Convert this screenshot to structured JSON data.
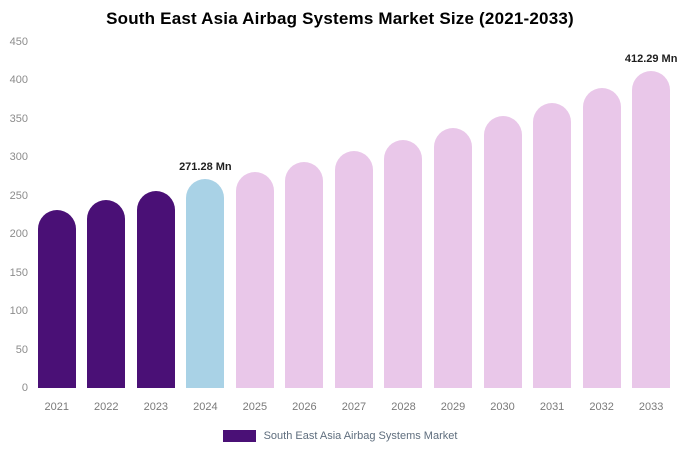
{
  "title": "South East Asia Airbag Systems Market Size (2021-2033)",
  "legend": {
    "label": "South East Asia Airbag Systems Market",
    "swatch_color": "#4a1076"
  },
  "colors": {
    "historical_bar": "#4a1076",
    "highlight_bar": "#a9d2e6",
    "forecast_bar": "#e9c7e9",
    "axis_text": "#8c8c8c",
    "annotation_text": "#1f1f1f"
  },
  "chart_data": {
    "type": "bar",
    "title": "South East Asia Airbag Systems Market Size (2021-2033)",
    "xlabel": "",
    "ylabel": "",
    "unit": "Mn",
    "categories": [
      "2021",
      "2022",
      "2023",
      "2024",
      "2025",
      "2026",
      "2027",
      "2028",
      "2029",
      "2030",
      "2031",
      "2032",
      "2033"
    ],
    "values": [
      231,
      244,
      256,
      271.28,
      281,
      294,
      308,
      322,
      338,
      354,
      371,
      390,
      412.29
    ],
    "bar_colors": [
      "#4a1076",
      "#4a1076",
      "#4a1076",
      "#a9d2e6",
      "#e9c7e9",
      "#e9c7e9",
      "#e9c7e9",
      "#e9c7e9",
      "#e9c7e9",
      "#e9c7e9",
      "#e9c7e9",
      "#e9c7e9",
      "#e9c7e9"
    ],
    "ylim": [
      0,
      450
    ],
    "yticks": [
      0,
      50,
      100,
      150,
      200,
      250,
      300,
      350,
      400,
      450
    ],
    "grid": false,
    "legend_position": "bottom",
    "annotations": [
      {
        "category": "2024",
        "text": "271.28 Mn"
      },
      {
        "category": "2033",
        "text": "412.29 Mn"
      }
    ]
  }
}
